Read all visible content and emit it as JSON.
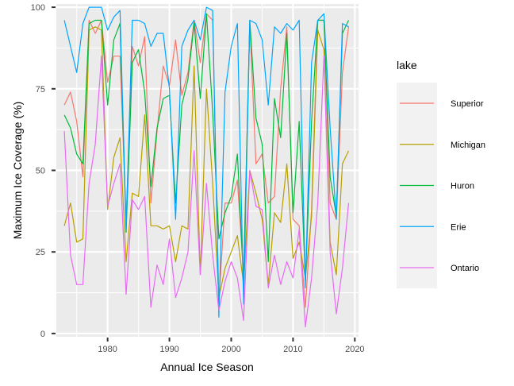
{
  "chart_data": {
    "type": "line",
    "title": "",
    "xlabel": "Annual Ice Season",
    "ylabel": "Maximum Ice Coverage (%)",
    "xlim": [
      1971.7,
      2020.6
    ],
    "ylim": [
      -1,
      101
    ],
    "x_ticks": [
      1980,
      1990,
      2000,
      2010,
      2020
    ],
    "y_ticks": [
      0,
      25,
      50,
      75,
      100
    ],
    "grid": true,
    "legend": {
      "title": "lake",
      "position": "right"
    },
    "x": [
      1973,
      1974,
      1975,
      1976,
      1977,
      1978,
      1979,
      1980,
      1981,
      1982,
      1983,
      1984,
      1985,
      1986,
      1987,
      1988,
      1989,
      1990,
      1991,
      1992,
      1993,
      1994,
      1995,
      1996,
      1997,
      1998,
      1999,
      2000,
      2001,
      2002,
      2003,
      2004,
      2005,
      2006,
      2007,
      2008,
      2009,
      2010,
      2011,
      2012,
      2013,
      2014,
      2015,
      2016,
      2017,
      2018,
      2019
    ],
    "series": [
      {
        "name": "Superior",
        "color": "#F8766D",
        "values": [
          70,
          74,
          65,
          48,
          96,
          92,
          96,
          77,
          85,
          85,
          35,
          88,
          82,
          91,
          40,
          62,
          82,
          76,
          90,
          73,
          80,
          96,
          83,
          98,
          96,
          10,
          40,
          40,
          47,
          18,
          95,
          52,
          55,
          40,
          42,
          75,
          94,
          35,
          33,
          8,
          38,
          96,
          96,
          40,
          35,
          80,
          94
        ]
      },
      {
        "name": "Michigan",
        "color": "#B79F00",
        "values": [
          33,
          40,
          28,
          29,
          93,
          94,
          93,
          38,
          54,
          60,
          22,
          43,
          42,
          67,
          33,
          33,
          32,
          33,
          22,
          33,
          32,
          82,
          18,
          75,
          46,
          11,
          20,
          25,
          30,
          15,
          50,
          43,
          35,
          15,
          37,
          34,
          52,
          23,
          28,
          17,
          36,
          93,
          87,
          28,
          18,
          52,
          56
        ]
      },
      {
        "name": "Huron",
        "color": "#00BA38",
        "values": [
          67,
          63,
          55,
          52,
          95,
          96,
          96,
          70,
          90,
          95,
          31,
          83,
          87,
          74,
          45,
          63,
          72,
          73,
          40,
          70,
          78,
          95,
          72,
          98,
          68,
          29,
          37,
          42,
          55,
          16,
          96,
          66,
          58,
          22,
          72,
          60,
          92,
          37,
          65,
          16,
          65,
          96,
          96,
          48,
          36,
          92,
          96
        ]
      },
      {
        "name": "Erie",
        "color": "#00A5FF",
        "values": [
          96,
          88,
          80,
          95,
          100,
          100,
          100,
          93,
          97,
          99,
          32,
          96,
          96,
          95,
          88,
          92,
          92,
          75,
          35,
          88,
          93,
          96,
          90,
          100,
          99,
          5,
          74,
          88,
          95,
          9,
          96,
          95,
          90,
          70,
          94,
          92,
          95,
          93,
          96,
          14,
          83,
          96,
          98,
          63,
          35,
          95,
          94
        ]
      },
      {
        "name": "Ontario",
        "color": "#E76BF3",
        "values": [
          62,
          24,
          15,
          15,
          46,
          58,
          85,
          39,
          46,
          52,
          12,
          41,
          38,
          42,
          8,
          21,
          15,
          29,
          11,
          17,
          25,
          56,
          18,
          46,
          24,
          7,
          16,
          22,
          17,
          4,
          50,
          39,
          38,
          14,
          24,
          15,
          22,
          17,
          32,
          2,
          17,
          40,
          85,
          25,
          6,
          20,
          40
        ]
      }
    ]
  }
}
